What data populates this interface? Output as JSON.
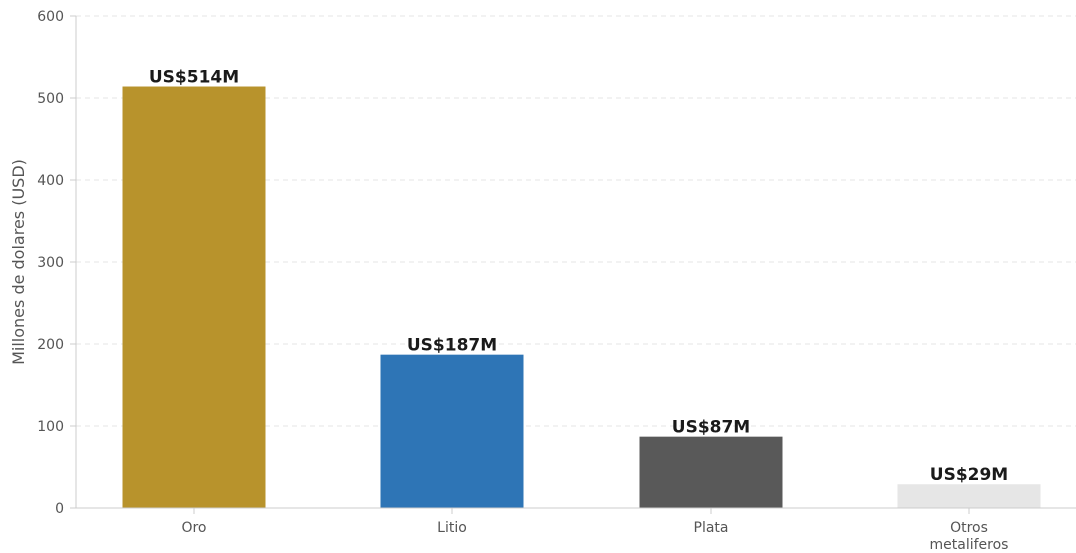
{
  "chart_data": {
    "type": "bar",
    "categories": [
      [
        "Oro"
      ],
      [
        "Litio"
      ],
      [
        "Plata"
      ],
      [
        "Otros",
        "metaliferos"
      ]
    ],
    "values": [
      514,
      187,
      87,
      29
    ],
    "value_labels": [
      "US$514M",
      "US$187M",
      "US$87M",
      "US$29M"
    ],
    "colors": [
      "#b8932c",
      "#2e75b6",
      "#595959",
      "#e6e6e6"
    ],
    "ylabel": "Millones de dolares (USD)",
    "ylim": [
      0,
      600
    ],
    "yticks": [
      0,
      100,
      200,
      300,
      400,
      500,
      600
    ],
    "grid": true
  }
}
